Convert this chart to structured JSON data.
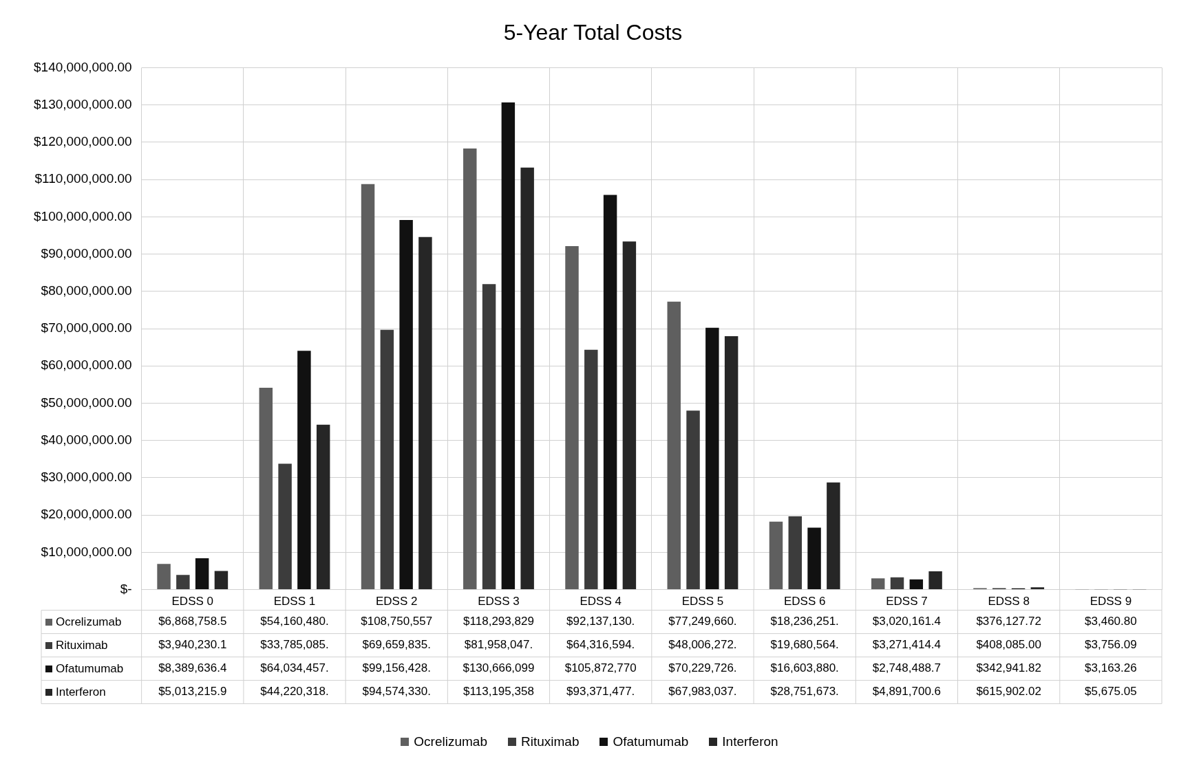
{
  "chart_data": {
    "type": "bar",
    "title": "5-Year Total Costs",
    "categories": [
      "EDSS 0",
      "EDSS 1",
      "EDSS 2",
      "EDSS 3",
      "EDSS 4",
      "EDSS 5",
      "EDSS 6",
      "EDSS 7",
      "EDSS 8",
      "EDSS 9"
    ],
    "series": [
      {
        "name": "Ocrelizumab",
        "color": "#5f5f5f",
        "values": [
          6868758.5,
          54160480,
          108750557,
          118293829,
          92137130,
          77249660,
          18236251,
          3020161.4,
          376127.72,
          3460.8
        ],
        "value_labels": [
          "$6,868,758.5",
          "$54,160,480.",
          "$108,750,557",
          "$118,293,829",
          "$92,137,130.",
          "$77,249,660.",
          "$18,236,251.",
          "$3,020,161.4",
          "$376,127.72",
          "$3,460.80"
        ]
      },
      {
        "name": "Rituximab",
        "color": "#3c3c3c",
        "values": [
          3940230.1,
          33785085,
          69659835,
          81958047,
          64316594,
          48006272,
          19680564,
          3271414.4,
          408085.0,
          3756.09
        ],
        "value_labels": [
          "$3,940,230.1",
          "$33,785,085.",
          "$69,659,835.",
          "$81,958,047.",
          "$64,316,594.",
          "$48,006,272.",
          "$19,680,564.",
          "$3,271,414.4",
          "$408,085.00",
          "$3,756.09"
        ]
      },
      {
        "name": "Ofatumumab",
        "color": "#111111",
        "values": [
          8389636.4,
          64034457,
          99156428,
          130666099,
          105872770,
          70229726,
          16603880,
          2748488.7,
          342941.82,
          3163.26
        ],
        "value_labels": [
          "$8,389,636.4",
          "$64,034,457.",
          "$99,156,428.",
          "$130,666,099",
          "$105,872,770",
          "$70,229,726.",
          "$16,603,880.",
          "$2,748,488.7",
          "$342,941.82",
          "$3,163.26"
        ]
      },
      {
        "name": "Interferon",
        "color": "#262626",
        "values": [
          5013215.9,
          44220318,
          94574330,
          113195358,
          93371477,
          67983037,
          28751673,
          4891700.6,
          615902.02,
          5675.05
        ],
        "value_labels": [
          "$5,013,215.9",
          "$44,220,318.",
          "$94,574,330.",
          "$113,195,358",
          "$93,371,477.",
          "$67,983,037.",
          "$28,751,673.",
          "$4,891,700.6",
          "$615,902.02",
          "$5,675.05"
        ]
      }
    ],
    "ylim": [
      0,
      140000000
    ],
    "yticks": [
      {
        "value": 0,
        "label": "$-"
      },
      {
        "value": 10000000,
        "label": "$10,000,000.00"
      },
      {
        "value": 20000000,
        "label": "$20,000,000.00"
      },
      {
        "value": 30000000,
        "label": "$30,000,000.00"
      },
      {
        "value": 40000000,
        "label": "$40,000,000.00"
      },
      {
        "value": 50000000,
        "label": "$50,000,000.00"
      },
      {
        "value": 60000000,
        "label": "$60,000,000.00"
      },
      {
        "value": 70000000,
        "label": "$70,000,000.00"
      },
      {
        "value": 80000000,
        "label": "$80,000,000.00"
      },
      {
        "value": 90000000,
        "label": "$90,000,000.00"
      },
      {
        "value": 100000000,
        "label": "$100,000,000.00"
      },
      {
        "value": 110000000,
        "label": "$110,000,000.00"
      },
      {
        "value": 120000000,
        "label": "$120,000,000.00"
      },
      {
        "value": 130000000,
        "label": "$130,000,000.00"
      },
      {
        "value": 140000000,
        "label": "$140,000,000.00"
      }
    ],
    "grid": true,
    "legend": "bottom"
  }
}
